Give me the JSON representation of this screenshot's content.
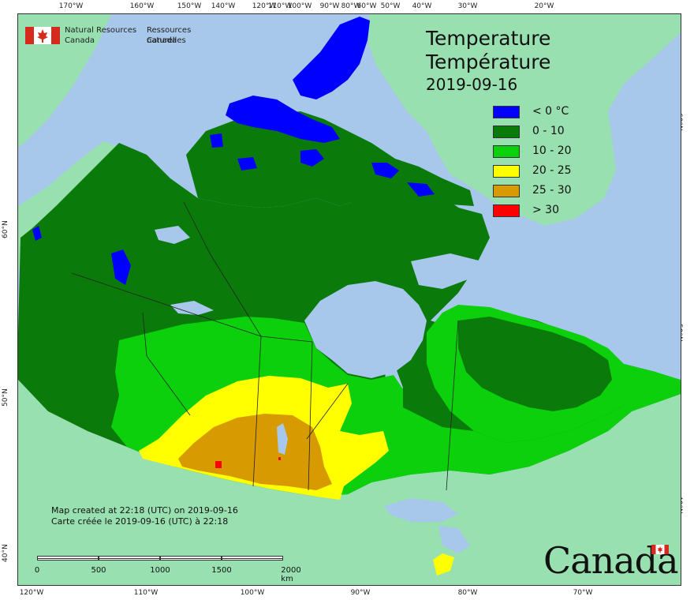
{
  "header": {
    "title_en": "Temperature",
    "title_fr": "Température",
    "date": "2019-09-16"
  },
  "agency": {
    "name_en_line1": "Natural Resources",
    "name_en_line2": "Canada",
    "name_fr_line1": "Ressources naturelles",
    "name_fr_line2": "Canada"
  },
  "legend": {
    "items": [
      {
        "label": "< 0 °C",
        "color": "#0000ff"
      },
      {
        "label": "0 - 10",
        "color": "#0a7a0a"
      },
      {
        "label": "10 - 20",
        "color": "#0bd00b"
      },
      {
        "label": "20 - 25",
        "color": "#ffff00"
      },
      {
        "label": "25 - 30",
        "color": "#d79a00"
      },
      {
        "label": "> 30",
        "color": "#ff0000"
      }
    ]
  },
  "graticule": {
    "top": [
      "170°W",
      "160°W",
      "150°W",
      "140°W",
      "120°W",
      "110°W",
      "100°W",
      "90°W",
      "80°W",
      "60°W",
      "50°W",
      "40°W",
      "30°W",
      "20°W"
    ],
    "bottom": [
      "120°W",
      "110°W",
      "100°W",
      "90°W",
      "80°W",
      "70°W"
    ],
    "left": [
      "60°N",
      "50°N",
      "40°N"
    ],
    "right": [
      "60°N",
      "50°N",
      "40°N"
    ]
  },
  "credits": {
    "en": "Map created at 22:18 (UTC) on 2019-09-16",
    "fr": "Carte créée le 2019-09-16 (UTC) à 22:18"
  },
  "scale": {
    "labels": [
      "0",
      "500",
      "1000",
      "1500",
      "2000  km"
    ]
  },
  "wordmark": "Canada",
  "colors": {
    "ocean": "#a7c8ea",
    "foreign_land": "#98e0b0",
    "lakes": "#a7c8ea"
  }
}
